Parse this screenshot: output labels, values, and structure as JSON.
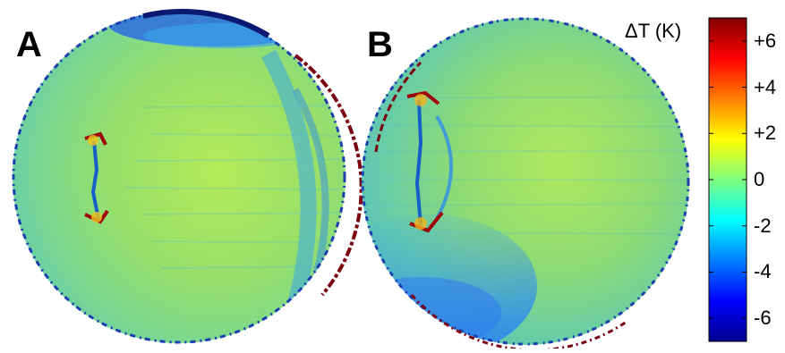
{
  "panels": [
    {
      "letter": "A"
    },
    {
      "letter": "B"
    }
  ],
  "colorbar": {
    "title": "ΔT (K)",
    "range": [
      -7,
      7
    ],
    "ticks": [
      {
        "value": 6,
        "label": "+6"
      },
      {
        "value": 4,
        "label": "+4"
      },
      {
        "value": 2,
        "label": "+2"
      },
      {
        "value": 0,
        "label": "0"
      },
      {
        "value": -2,
        "label": "-2"
      },
      {
        "value": -4,
        "label": "-4"
      },
      {
        "value": -6,
        "label": "-6"
      }
    ],
    "colormap": "jet",
    "colors": [
      "#00008f",
      "#0000ff",
      "#00ffff",
      "#ffff00",
      "#ff0000",
      "#800000"
    ]
  }
}
